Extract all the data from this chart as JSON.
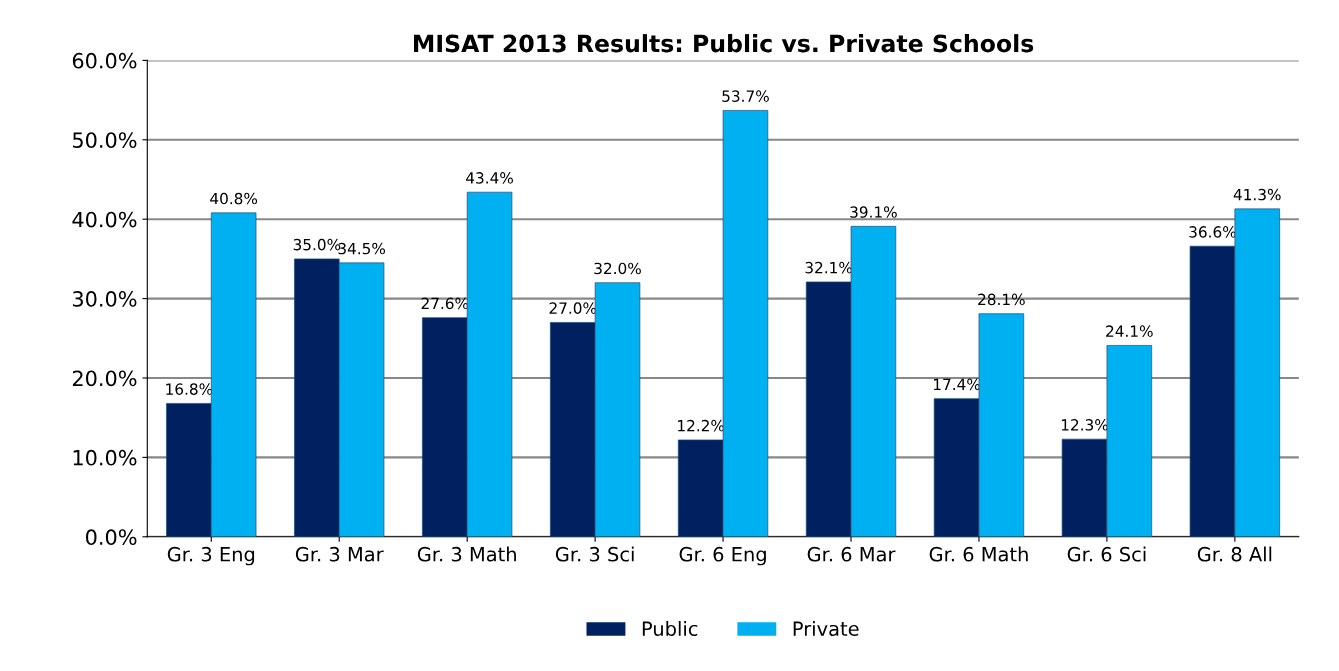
{
  "chart_data": {
    "type": "bar",
    "title": "MISAT 2013 Results: Public vs. Private Schools",
    "categories": [
      "Gr. 3 Eng",
      "Gr. 3 Mar",
      "Gr. 3 Math",
      "Gr. 3 Sci",
      "Gr. 6 Eng",
      "Gr. 6 Mar",
      "Gr. 6 Math",
      "Gr. 6 Sci",
      "Gr. 8 All"
    ],
    "series": [
      {
        "name": "Public",
        "color": "#002060",
        "values": [
          16.8,
          35.0,
          27.6,
          27.0,
          12.2,
          32.1,
          17.4,
          12.3,
          36.6
        ],
        "value_labels": [
          "16.8%",
          "35.0%",
          "27.6%",
          "27.0%",
          "12.2%",
          "32.1%",
          "17.4%",
          "12.3%",
          "36.6%"
        ]
      },
      {
        "name": "Private",
        "color": "#00b0f0",
        "values": [
          40.8,
          34.5,
          43.4,
          32.0,
          53.7,
          39.1,
          28.1,
          24.1,
          41.3
        ],
        "value_labels": [
          "40.8%",
          "34.5%",
          "43.4%",
          "32.0%",
          "53.7%",
          "39.1%",
          "28.1%",
          "24.1%",
          "41.3%"
        ]
      }
    ],
    "ylim": [
      0,
      60
    ],
    "yticks": [
      {
        "value": 0,
        "label": "0.0%"
      },
      {
        "value": 10,
        "label": "10.0%"
      },
      {
        "value": 20,
        "label": "20.0%"
      },
      {
        "value": 30,
        "label": "30.0%"
      },
      {
        "value": 40,
        "label": "40.0%"
      },
      {
        "value": 50,
        "label": "50.0%"
      },
      {
        "value": 60,
        "label": "60.0%"
      }
    ],
    "grid": "y",
    "legend": "bottom"
  }
}
